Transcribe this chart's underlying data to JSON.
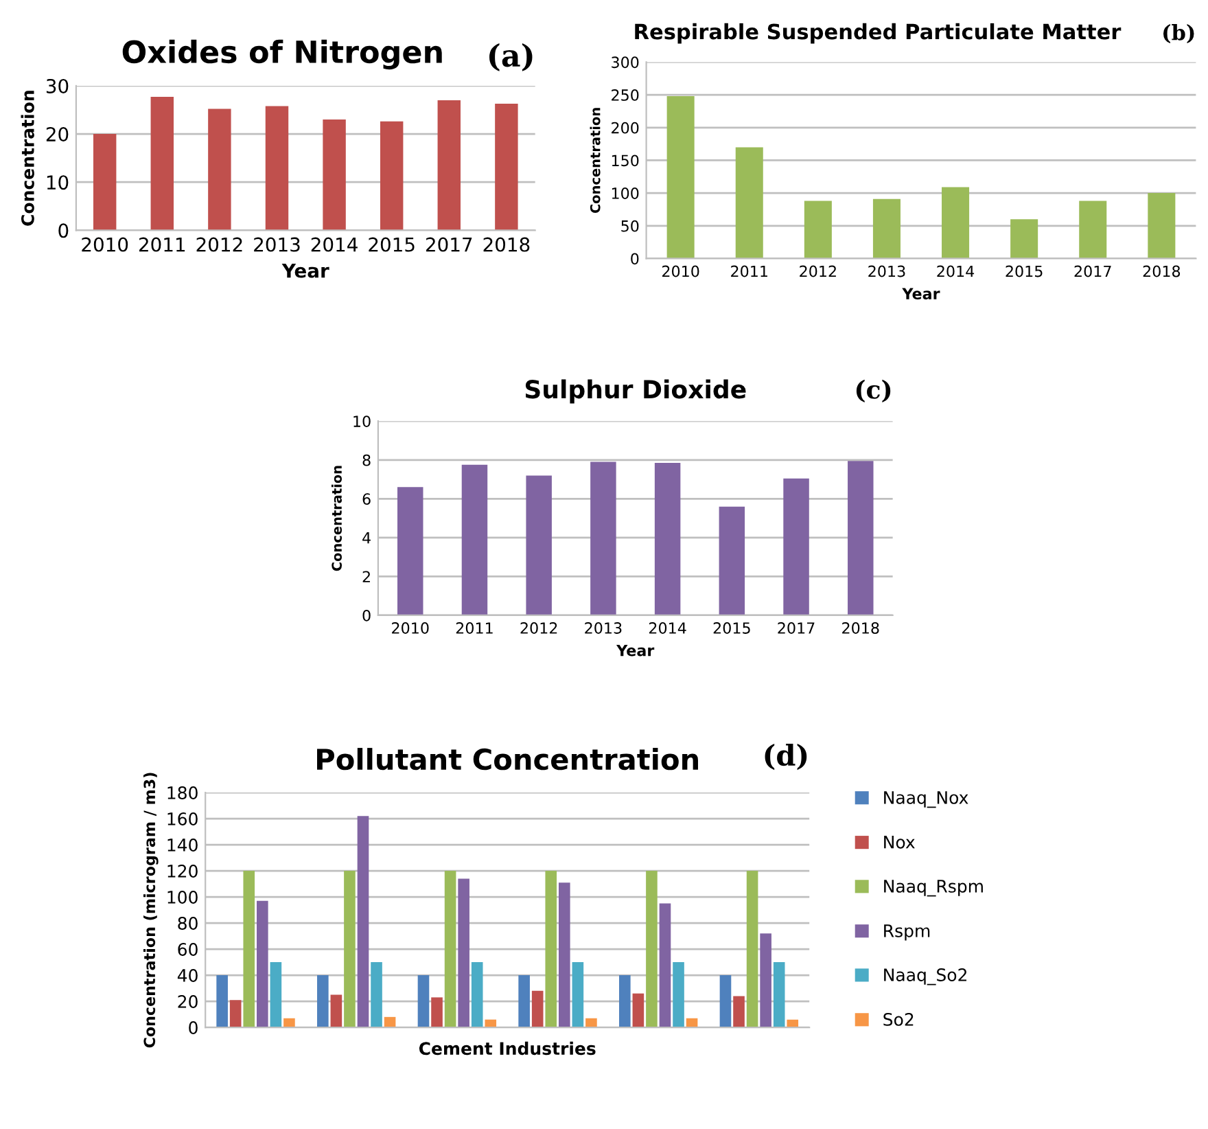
{
  "chart_data": [
    {
      "type": "bar",
      "title": "Oxides of Nitrogen",
      "xlabel": "Year",
      "ylabel": "Concentration",
      "annotations": [
        "(a)"
      ],
      "categories": [
        "2010",
        "2011",
        "2012",
        "2013",
        "2014",
        "2015",
        "2017",
        "2018"
      ],
      "series": [
        {
          "color": "#c0504d",
          "values": [
            20,
            27.7,
            25.2,
            25.8,
            23,
            22.6,
            27,
            26.3
          ]
        }
      ],
      "ylim": [
        0,
        30
      ],
      "yticks": [
        0,
        10,
        20,
        30
      ],
      "grid": "y"
    },
    {
      "type": "bar",
      "title": "Respirable Suspended Particulate Matter",
      "xlabel": "Year",
      "ylabel": "Concentration",
      "annotations": [
        "(b)"
      ],
      "categories": [
        "2010",
        "2011",
        "2012",
        "2013",
        "2014",
        "2015",
        "2017",
        "2018"
      ],
      "series": [
        {
          "color": "#9bbb59",
          "values": [
            248,
            170,
            88,
            91,
            109,
            60,
            88,
            100
          ]
        }
      ],
      "ylim": [
        0,
        300
      ],
      "yticks": [
        0,
        50,
        100,
        150,
        200,
        250,
        300
      ],
      "grid": "y"
    },
    {
      "type": "bar",
      "title": "Sulphur Dioxide",
      "xlabel": "Year",
      "ylabel": "Concentration",
      "annotations": [
        "(c)"
      ],
      "categories": [
        "2010",
        "2011",
        "2012",
        "2013",
        "2014",
        "2015",
        "2017",
        "2018"
      ],
      "series": [
        {
          "color": "#8064a2",
          "values": [
            6.6,
            7.75,
            7.2,
            7.9,
            7.85,
            5.6,
            7.05,
            7.95
          ]
        }
      ],
      "ylim": [
        0,
        10
      ],
      "yticks": [
        0,
        2,
        4,
        6,
        8,
        10
      ],
      "grid": "y"
    },
    {
      "type": "bar",
      "title": "Pollutant Concentration",
      "xlabel": "Cement Industries",
      "ylabel": "Concentration (microgram / m3)",
      "annotations": [
        "(d)"
      ],
      "categories": [
        null,
        null,
        null,
        null,
        null,
        null
      ],
      "series": [
        {
          "name": "Naaq_Nox",
          "color": "#4f81bd",
          "values": [
            40,
            40,
            40,
            40,
            40,
            40
          ]
        },
        {
          "name": "Nox",
          "color": "#c0504d",
          "values": [
            21,
            25,
            23,
            28,
            26,
            24
          ]
        },
        {
          "name": "Naaq_Rspm",
          "color": "#9bbb59",
          "values": [
            120,
            120,
            120,
            120,
            120,
            120
          ]
        },
        {
          "name": "Rspm",
          "color": "#8064a2",
          "values": [
            97,
            162,
            114,
            111,
            95,
            72
          ]
        },
        {
          "name": "Naaq_So2",
          "color": "#4bacc6",
          "values": [
            50,
            50,
            50,
            50,
            50,
            50
          ]
        },
        {
          "name": "So2",
          "color": "#f79646",
          "values": [
            7,
            8,
            6,
            7,
            7,
            6
          ]
        }
      ],
      "ylim": [
        0,
        180
      ],
      "yticks": [
        0,
        20,
        40,
        60,
        80,
        100,
        120,
        140,
        160,
        180
      ],
      "grid": "y",
      "legend": "right"
    }
  ]
}
